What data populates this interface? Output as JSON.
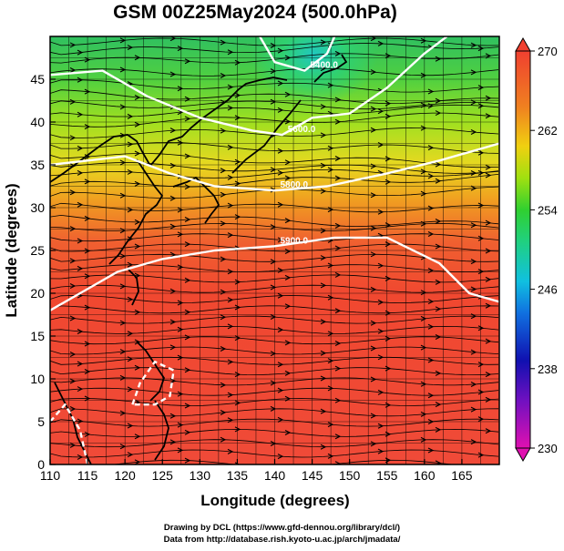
{
  "title": "GSM 00Z25May2024 (500.0hPa)",
  "credits": {
    "line1": "Drawing by DCL (https://www.gfd-dennou.org/library/dcl/)",
    "line2": "Data from http://database.rish.kyoto-u.ac.jp/arch/jmadata/"
  },
  "chart_data": {
    "type": "map",
    "xlabel": "Longitude (degrees)",
    "ylabel": "Latitude  (degrees)",
    "xlim": [
      110,
      170
    ],
    "ylim": [
      0,
      50
    ],
    "x_ticks": [
      "110",
      "115",
      "120",
      "125",
      "130",
      "135",
      "140",
      "145",
      "150",
      "155",
      "160",
      "165"
    ],
    "y_ticks": [
      "0",
      "5",
      "10",
      "15",
      "20",
      "25",
      "30",
      "35",
      "40",
      "45"
    ],
    "colorbar": {
      "ticks": [
        "230",
        "238",
        "246",
        "254",
        "262",
        "270"
      ],
      "range": [
        230,
        270
      ],
      "colors": [
        "#e010b0",
        "#4010c0",
        "#1040e0",
        "#10c0e0",
        "#20d040",
        "#a0e010",
        "#f0d010",
        "#f08020",
        "#f04030"
      ]
    },
    "contour_labels": [
      "5400.0",
      "5600.0",
      "5800.0",
      "5900.0"
    ],
    "contours": [
      {
        "label": "5400.0",
        "points": [
          [
            138,
            50
          ],
          [
            140,
            47
          ],
          [
            144,
            46
          ],
          [
            147,
            48
          ],
          [
            148,
            50
          ]
        ]
      },
      {
        "label": "5600.0",
        "points": [
          [
            110,
            45.5
          ],
          [
            117,
            46
          ],
          [
            123,
            43
          ],
          [
            130,
            40.5
          ],
          [
            137,
            39
          ],
          [
            141,
            38.5
          ],
          [
            145,
            40.5
          ],
          [
            150,
            41
          ],
          [
            155,
            44
          ],
          [
            160,
            48
          ],
          [
            163,
            50
          ]
        ]
      },
      {
        "label": "5800.0",
        "points": [
          [
            110,
            35
          ],
          [
            115,
            35.5
          ],
          [
            120,
            36
          ],
          [
            126,
            34
          ],
          [
            132,
            32.5
          ],
          [
            140,
            32
          ],
          [
            147,
            32.5
          ],
          [
            155,
            34
          ],
          [
            162,
            35.5
          ],
          [
            170,
            37.5
          ]
        ]
      },
      {
        "label": "5900.0",
        "points": [
          [
            110,
            18
          ],
          [
            114,
            20
          ],
          [
            119,
            22.5
          ],
          [
            125,
            24
          ],
          [
            132,
            25
          ],
          [
            140,
            25.5
          ],
          [
            148,
            26.5
          ],
          [
            155,
            26.5
          ],
          [
            162,
            23.5
          ],
          [
            166,
            20
          ],
          [
            170,
            19
          ]
        ]
      },
      {
        "label": "",
        "points": [
          [
            121,
            7
          ],
          [
            122,
            9.5
          ],
          [
            124,
            12
          ],
          [
            126.5,
            11
          ],
          [
            126,
            8
          ],
          [
            124,
            7
          ],
          [
            121,
            7
          ]
        ]
      },
      {
        "label": "",
        "points": [
          [
            110,
            5
          ],
          [
            112,
            7
          ],
          [
            114,
            4
          ],
          [
            115,
            0
          ]
        ]
      }
    ]
  }
}
